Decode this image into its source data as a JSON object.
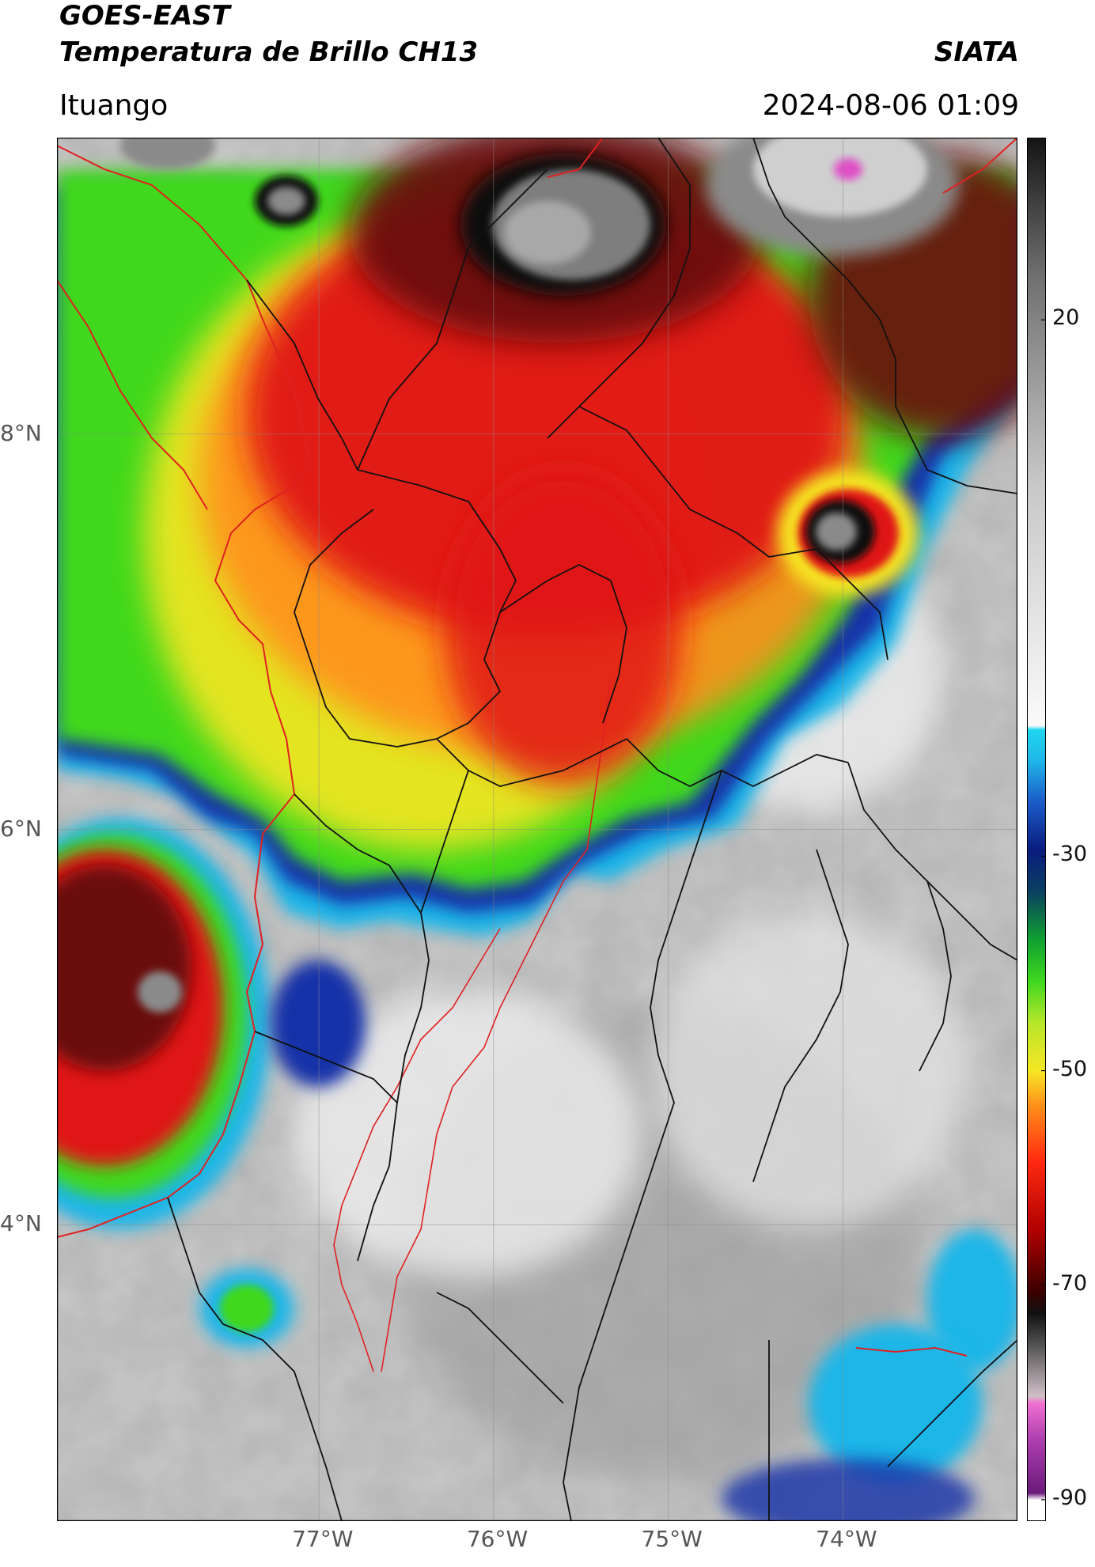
{
  "header": {
    "satellite": "GOES-EAST",
    "product": "Temperatura de Brillo CH13",
    "organization": "SIATA",
    "location": "Ituango",
    "datetime": "2024-08-06 01:09"
  },
  "map": {
    "lat_ticks": [
      {
        "label": "8°N",
        "lat": 8
      },
      {
        "label": "6°N",
        "lat": 6
      },
      {
        "label": "4°N",
        "lat": 4
      }
    ],
    "lon_ticks": [
      {
        "label": "77°W",
        "lon": -77
      },
      {
        "label": "76°W",
        "lon": -76
      },
      {
        "label": "75°W",
        "lon": -75
      },
      {
        "label": "74°W",
        "lon": -74
      }
    ],
    "extent": {
      "lon_min": -78.5,
      "lon_max": -73,
      "lat_min": 2.5,
      "lat_max": 9.5
    },
    "grid": true
  },
  "colorbar": {
    "tick_labels": [
      {
        "label": "20",
        "value": 20
      },
      {
        "label": "-30",
        "value": -30
      },
      {
        "label": "-50",
        "value": -50
      },
      {
        "label": "-70",
        "value": -70
      },
      {
        "label": "-90",
        "value": -90
      }
    ],
    "range": [
      -92,
      37
    ],
    "colors": {
      "warm_gray": "#dcdcdc",
      "cyan": "#1fb6e8",
      "blue": "#1630a8",
      "green": "#3fd81f",
      "yellow": "#f6e624",
      "orange": "#ff8f1a",
      "red": "#e01414",
      "dark_red": "#6a0707",
      "black": "#111111",
      "magenta": "#e050c8"
    }
  }
}
